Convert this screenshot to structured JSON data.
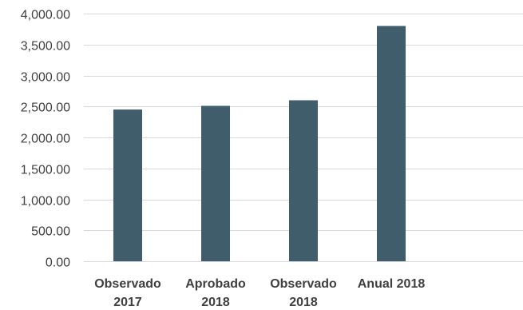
{
  "chart_data": {
    "type": "bar",
    "title": "",
    "xlabel": "",
    "ylabel": "",
    "categories": [
      [
        "Observado",
        "2017"
      ],
      [
        "Aprobado",
        "2018"
      ],
      [
        "Observado",
        "2018"
      ],
      [
        "Anual 2018"
      ],
      [
        ""
      ]
    ],
    "values": [
      2450,
      2510,
      2600,
      3800,
      null
    ],
    "ylim": [
      0,
      4000
    ],
    "yticks": [
      0,
      500,
      1000,
      1500,
      2000,
      2500,
      3000,
      3500,
      4000
    ],
    "ytick_labels": [
      "0.00",
      "500.00",
      "1,000.00",
      "1,500.00",
      "2,000.00",
      "2,500.00",
      "3,000.00",
      "3,500.00",
      "4,000.00"
    ],
    "bar_color": "#3f5d6b",
    "grid": true,
    "legend": "none"
  }
}
